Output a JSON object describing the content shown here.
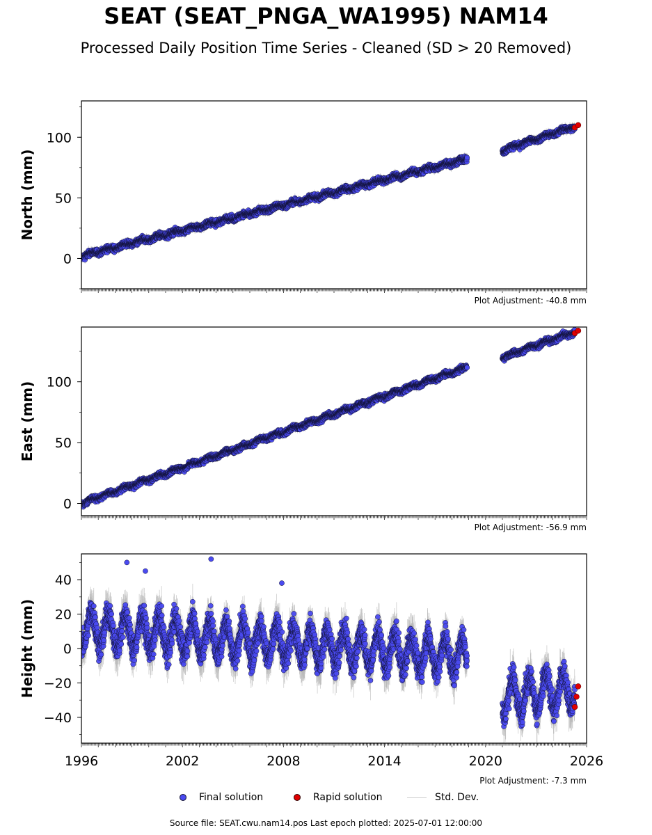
{
  "title": "SEAT (SEAT_PNGA_WA1995) NAM14",
  "subtitle": "Processed Daily Position Time Series - Cleaned (SD > 20 Removed)",
  "source_note": "Source file: SEAT.cwu.nam14.pos  Last epoch plotted: 2025-07-01 12:00:00",
  "colors": {
    "final": "#4a4af0",
    "final_edge": "#111133",
    "rapid": "#e00000",
    "std": "#b8b8b8"
  },
  "legend": [
    {
      "label": "Final solution",
      "kind": "final"
    },
    {
      "label": "Rapid solution",
      "kind": "rapid"
    },
    {
      "label": "Std. Dev.",
      "kind": "std"
    }
  ],
  "chart_data": [
    {
      "type": "scatter",
      "ylabel": "North (mm)",
      "adjustment": "Plot Adjustment: -40.8 mm",
      "xlim": [
        1996,
        2026
      ],
      "ylim": [
        -25,
        130
      ],
      "yticks": [
        0,
        50,
        100
      ],
      "gap": [
        2019.0,
        2021.0
      ],
      "series": [
        {
          "name": "Final solution",
          "segments": [
            {
              "x": [
                1996.0,
                2018.9
              ],
              "y": [
                2,
                82
              ]
            },
            {
              "x": [
                2021.0,
                2025.3
              ],
              "y": [
                89,
                109
              ]
            }
          ],
          "scatter_mm": 2.2,
          "seasonal_mm": 1.0
        },
        {
          "name": "Rapid solution",
          "points": {
            "x": [
              2025.3,
              2025.5
            ],
            "y": [
              108,
              110
            ]
          }
        }
      ]
    },
    {
      "type": "scatter",
      "ylabel": "East (mm)",
      "adjustment": "Plot Adjustment: -56.9 mm",
      "xlim": [
        1996,
        2026
      ],
      "ylim": [
        -10,
        145
      ],
      "yticks": [
        0,
        50,
        100
      ],
      "gap": [
        2019.0,
        2021.0
      ],
      "series": [
        {
          "name": "Final solution",
          "segments": [
            {
              "x": [
                1996.0,
                2018.9
              ],
              "y": [
                0,
                112
              ]
            },
            {
              "x": [
                2021.0,
                2025.3
              ],
              "y": [
                120,
                141
              ]
            }
          ],
          "scatter_mm": 2.0,
          "seasonal_mm": 1.0
        },
        {
          "name": "Rapid solution",
          "points": {
            "x": [
              2025.3,
              2025.5
            ],
            "y": [
              140,
              142
            ]
          }
        }
      ]
    },
    {
      "type": "scatter",
      "ylabel": "Height (mm)",
      "adjustment": "Plot Adjustment: -7.3 mm",
      "xlim": [
        1996,
        2026
      ],
      "ylim": [
        -55,
        55
      ],
      "yticks": [
        -40,
        -20,
        0,
        20,
        40
      ],
      "xticks": [
        1996,
        2002,
        2008,
        2014,
        2020,
        2026
      ],
      "gap": [
        2019.0,
        2021.0
      ],
      "series": [
        {
          "name": "Final solution",
          "segments": [
            {
              "x": [
                1996.0,
                2018.9
              ],
              "y": [
                12,
                -5
              ]
            },
            {
              "x": [
                2021.0,
                2025.3
              ],
              "y": [
                -28,
                -24
              ]
            }
          ],
          "scatter_mm": 7.0,
          "seasonal_mm": 10.0,
          "outliers": {
            "x": [
              1998.7,
              1999.8,
              2003.7,
              2007.9
            ],
            "y": [
              50,
              45,
              52,
              38
            ]
          }
        },
        {
          "name": "Rapid solution",
          "points": {
            "x": [
              2025.3,
              2025.4,
              2025.5
            ],
            "y": [
              -34,
              -28,
              -22
            ]
          }
        }
      ]
    }
  ]
}
